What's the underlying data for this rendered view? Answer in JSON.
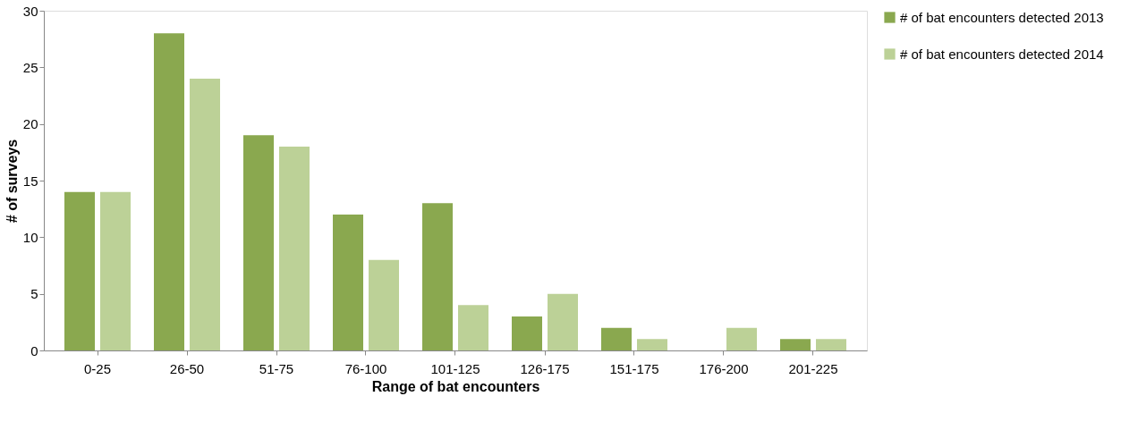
{
  "chart_data": {
    "type": "bar",
    "xlabel": "Range of bat encounters",
    "ylabel": "# of surveys",
    "categories": [
      "0-25",
      "26-50",
      "51-75",
      "76-100",
      "101-125",
      "126-175",
      "151-175",
      "176-200",
      "201-225"
    ],
    "series": [
      {
        "name": "# of bat encounters detected 2013",
        "color": "#8aa84f",
        "values": [
          14,
          28,
          19,
          12,
          13,
          3,
          2,
          0,
          1
        ]
      },
      {
        "name": "# of bat encounters detected 2014",
        "color": "#bcd197",
        "values": [
          14,
          24,
          18,
          8,
          4,
          5,
          1,
          2,
          1
        ]
      }
    ],
    "ylim": [
      0,
      30
    ],
    "yticks": [
      0,
      5,
      10,
      15,
      20,
      25,
      30
    ],
    "grid": false,
    "legend": "right"
  }
}
